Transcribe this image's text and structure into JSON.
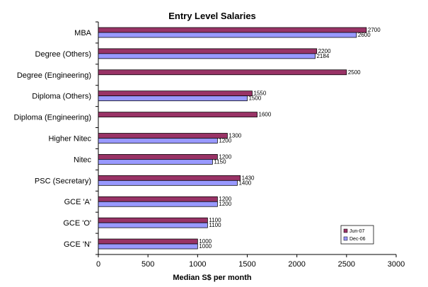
{
  "chart_data": {
    "type": "bar",
    "orientation": "horizontal",
    "title": "Entry Level Salaries",
    "xlabel": "Median S$ per month",
    "ylabel": "",
    "xlim": [
      0,
      3000
    ],
    "xticks": [
      0,
      500,
      1000,
      1500,
      2000,
      2500,
      3000
    ],
    "grid": false,
    "legend_position": "bottom-right",
    "categories": [
      "MBA",
      "Degree (Others)",
      "Degree (Engineering)",
      "Diploma (Others)",
      "Diploma (Engineering)",
      "Higher Nitec",
      "Nitec",
      "PSC (Secretary)",
      "GCE 'A'",
      "GCE 'O'",
      "GCE 'N'"
    ],
    "series": [
      {
        "name": "Jun-07",
        "color": "#993366",
        "values": [
          2700,
          2200,
          2500,
          1550,
          1600,
          1300,
          1200,
          1430,
          1200,
          1100,
          1000
        ]
      },
      {
        "name": "Dec-06",
        "color": "#9999FF",
        "values": [
          2600,
          2184,
          null,
          1500,
          null,
          1200,
          1150,
          1400,
          1200,
          1100,
          1000
        ]
      }
    ]
  }
}
